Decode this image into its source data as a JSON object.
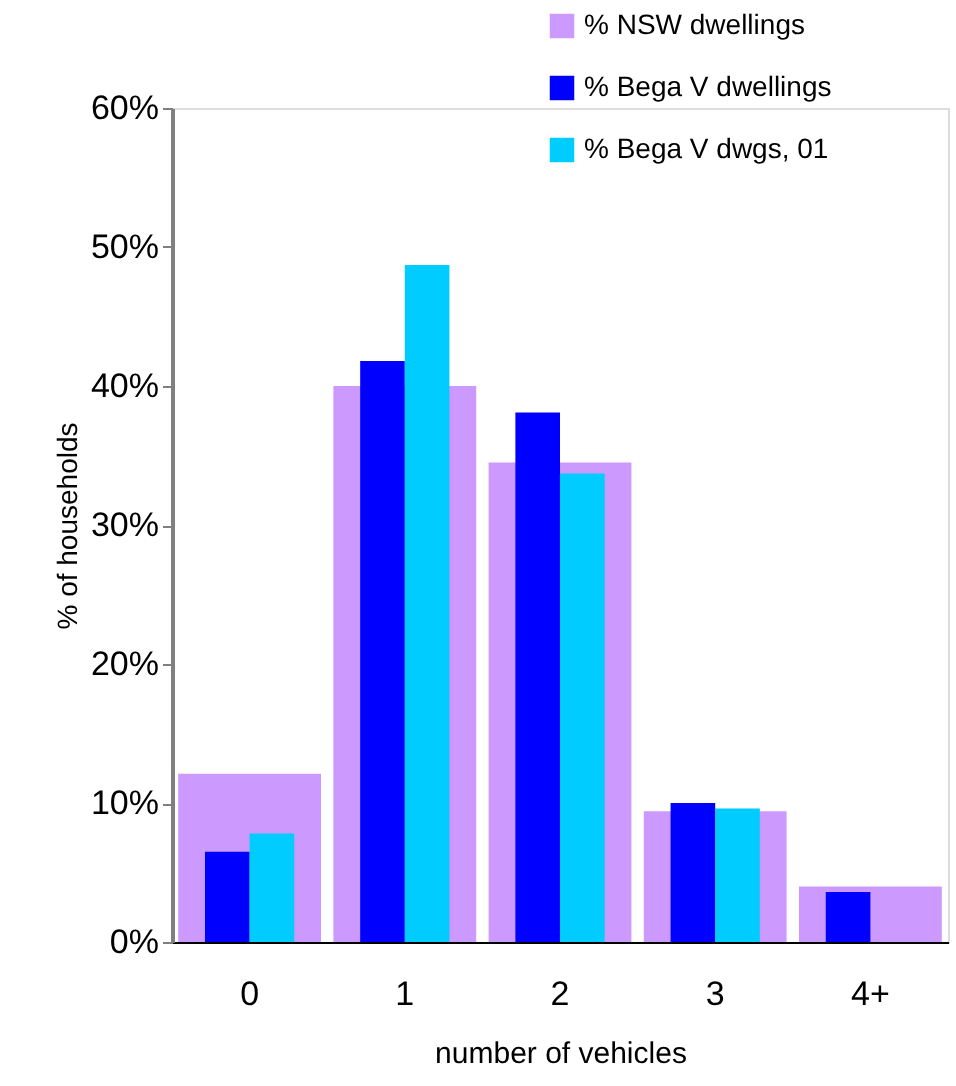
{
  "chart_data": {
    "type": "bar",
    "categories": [
      "0",
      "1",
      "2",
      "3",
      "4+"
    ],
    "series": [
      {
        "name": "% NSW dwellings",
        "color": "#cc99ff",
        "values": [
          12.1,
          40.0,
          34.5,
          9.4,
          4.0
        ]
      },
      {
        "name": "% Bega V dwellings",
        "color": "#0000ff",
        "values": [
          6.5,
          41.8,
          38.1,
          10.0,
          3.6
        ]
      },
      {
        "name": "% Bega V dwgs, 01",
        "color": "#00ccff",
        "values": [
          7.8,
          48.7,
          33.7,
          9.6,
          null
        ]
      }
    ],
    "xlabel": "number of vehicles",
    "ylabel": "% of households",
    "ylim": [
      0,
      60
    ],
    "yticks": [
      {
        "value": 0,
        "label": "0%"
      },
      {
        "value": 10,
        "label": "10%"
      },
      {
        "value": 20,
        "label": "20%"
      },
      {
        "value": 30,
        "label": "30%"
      },
      {
        "value": 40,
        "label": "40%"
      },
      {
        "value": 50,
        "label": "50%"
      },
      {
        "value": 60,
        "label": "60%"
      }
    ],
    "legend": "top right"
  }
}
